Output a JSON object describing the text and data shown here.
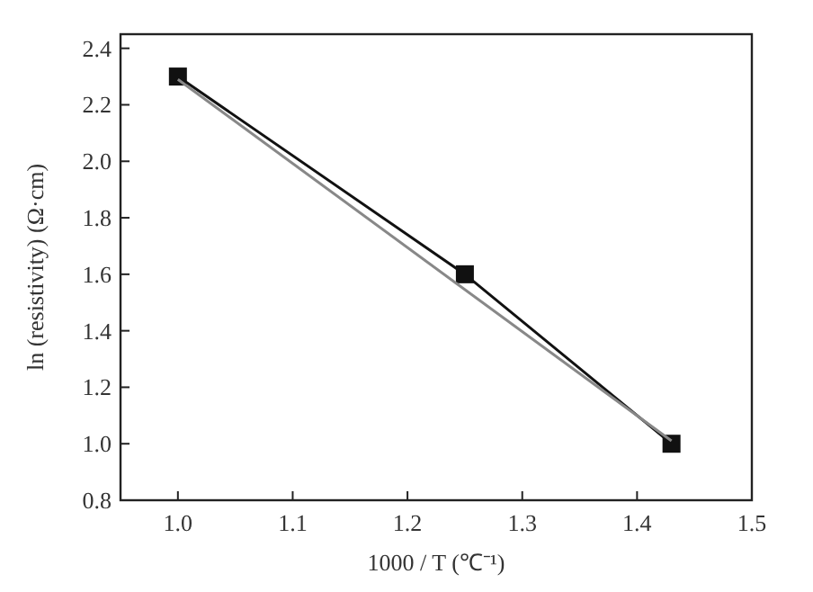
{
  "chart_data": {
    "type": "line",
    "xlabel": "1000 / T (℃⁻¹)",
    "ylabel": "ln (resistivity) (Ω·cm)",
    "xlim": [
      0.95,
      1.5
    ],
    "xticks": [
      {
        "value": 1.0,
        "label": "1.0"
      },
      1.1,
      1.2,
      1.3,
      1.4,
      1.5
    ],
    "ylim": [
      0.8,
      2.45
    ],
    "yticks": [
      0.8,
      {
        "value": 1.0,
        "label": "1.0"
      },
      1.2,
      1.4,
      1.6,
      1.8,
      {
        "value": 2.0,
        "label": "2.0"
      },
      2.2,
      2.4
    ],
    "grid": false,
    "series": [
      {
        "color": "#111111",
        "x": [
          1.0,
          1.25,
          1.43
        ],
        "values": [
          2.3,
          1.6,
          1.0
        ],
        "marker": "square"
      },
      {
        "color": "#888888",
        "x": [
          1.0,
          1.43
        ],
        "values": [
          2.29,
          1.01
        ],
        "marker": "none"
      }
    ]
  }
}
